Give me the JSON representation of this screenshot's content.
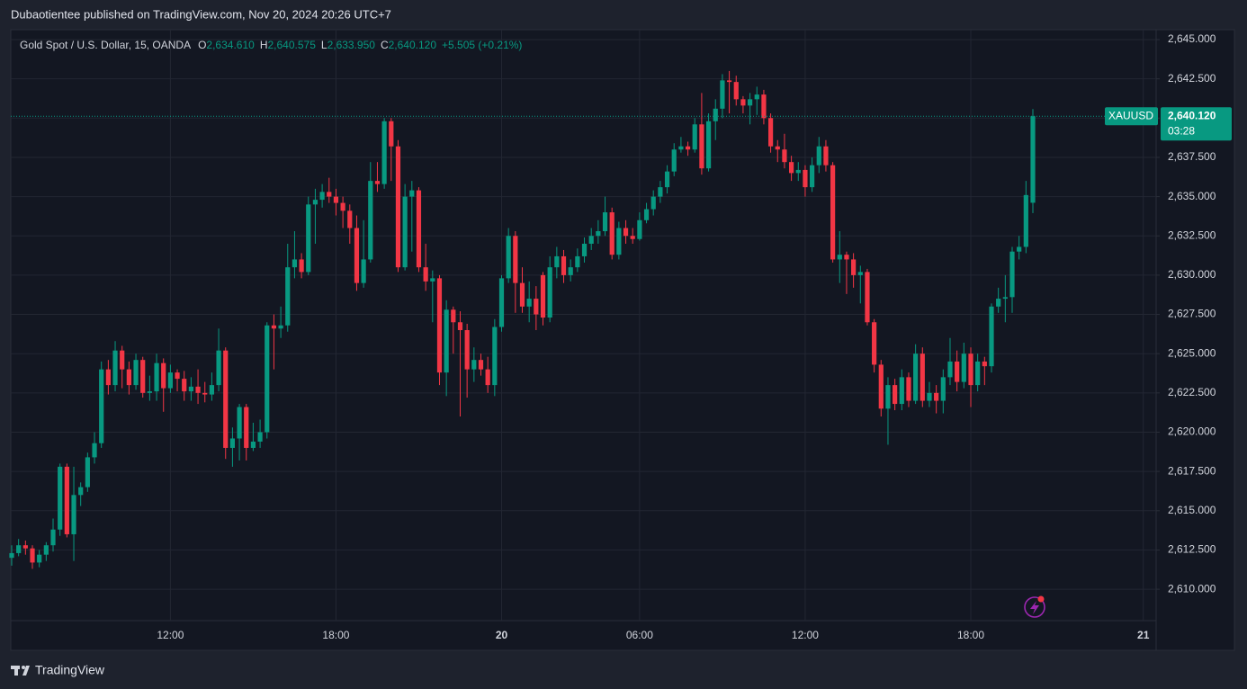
{
  "header": "Dubaotientee published on TradingView.com, Nov 20, 2024 20:26 UTC+7",
  "footer": "TradingView",
  "chart_data": {
    "type": "candlestick",
    "title": "Gold Spot / U.S. Dollar, 15, OANDA",
    "legend_values": [
      {
        "key": "O",
        "text": "2,634.610"
      },
      {
        "key": "H",
        "text": "2,640.575"
      },
      {
        "key": "L",
        "text": "2,633.950"
      },
      {
        "key": "C",
        "text": "2,640.120"
      }
    ],
    "change": "+5.505 (+0.21%)",
    "symbol": "XAUUSD",
    "last_price": {
      "value": 2640.12,
      "label": "2,640.120"
    },
    "countdown": "03:28",
    "up_color": "#089981",
    "down_color": "#f23645",
    "grid": true,
    "ylim": [
      2608,
      2645.63
    ],
    "yticks": [
      {
        "value": 2645,
        "label": "2,645.000"
      },
      {
        "value": 2642.5,
        "label": "2,642.500"
      },
      {
        "value": 2640,
        "label": "2,640.000"
      },
      {
        "value": 2637.5,
        "label": "2,637.500"
      },
      {
        "value": 2635,
        "label": "2,635.000"
      },
      {
        "value": 2632.5,
        "label": "2,632.500"
      },
      {
        "value": 2630,
        "label": "2,630.000"
      },
      {
        "value": 2627.5,
        "label": "2,627.500"
      },
      {
        "value": 2625,
        "label": "2,625.000"
      },
      {
        "value": 2622.5,
        "label": "2,622.500"
      },
      {
        "value": 2620,
        "label": "2,620.000"
      },
      {
        "value": 2617.5,
        "label": "2,617.500"
      },
      {
        "value": 2615,
        "label": "2,615.000"
      },
      {
        "value": 2612.5,
        "label": "2,612.500"
      },
      {
        "value": 2610,
        "label": "2,610.000"
      }
    ],
    "next_label": "21",
    "categories": [
      null,
      null,
      null,
      null,
      null,
      null,
      null,
      null,
      null,
      null,
      null,
      null,
      null,
      null,
      null,
      null,
      null,
      null,
      null,
      null,
      null,
      null,
      null,
      "12:00",
      null,
      null,
      null,
      null,
      null,
      null,
      null,
      null,
      null,
      null,
      null,
      null,
      null,
      null,
      null,
      null,
      null,
      null,
      null,
      null,
      null,
      null,
      null,
      "18:00",
      null,
      null,
      null,
      null,
      null,
      null,
      null,
      null,
      null,
      null,
      null,
      null,
      null,
      null,
      null,
      null,
      null,
      null,
      null,
      null,
      null,
      null,
      null,
      "20",
      null,
      null,
      null,
      null,
      null,
      null,
      null,
      null,
      null,
      null,
      null,
      null,
      null,
      null,
      null,
      null,
      null,
      null,
      null,
      "06:00",
      null,
      null,
      null,
      null,
      null,
      null,
      null,
      null,
      null,
      null,
      null,
      null,
      null,
      null,
      null,
      null,
      null,
      null,
      null,
      null,
      null,
      null,
      null,
      "12:00",
      null,
      null,
      null,
      null,
      null,
      null,
      null,
      null,
      null,
      null,
      null,
      null,
      null,
      null,
      null,
      null,
      null,
      null,
      null,
      null,
      null,
      null,
      null,
      "18:00",
      null,
      null,
      null,
      null,
      null,
      null,
      null,
      null,
      null
    ],
    "ohlc": [
      [
        2612.0,
        2612.8,
        2611.5,
        2612.3
      ],
      [
        2612.3,
        2613.2,
        2612.1,
        2612.8
      ],
      [
        2612.8,
        2613.1,
        2612.2,
        2612.6
      ],
      [
        2612.6,
        2612.8,
        2611.3,
        2611.7
      ],
      [
        2611.7,
        2612.5,
        2611.4,
        2612.2
      ],
      [
        2612.2,
        2613.0,
        2611.8,
        2612.8
      ],
      [
        2612.8,
        2614.5,
        2612.4,
        2613.8
      ],
      [
        2613.8,
        2618.0,
        2613.4,
        2617.8
      ],
      [
        2617.8,
        2618.0,
        2613.3,
        2613.5
      ],
      [
        2613.5,
        2617.8,
        2611.8,
        2616.0
      ],
      [
        2616.0,
        2616.8,
        2615.3,
        2616.5
      ],
      [
        2616.5,
        2618.7,
        2616.2,
        2618.4
      ],
      [
        2618.4,
        2620.0,
        2618.0,
        2619.3
      ],
      [
        2619.3,
        2624.5,
        2619.0,
        2624.0
      ],
      [
        2624.0,
        2624.6,
        2622.4,
        2623.0
      ],
      [
        2623.0,
        2625.8,
        2622.6,
        2625.2
      ],
      [
        2625.2,
        2625.5,
        2622.8,
        2624.0
      ],
      [
        2624.0,
        2624.5,
        2622.4,
        2623.0
      ],
      [
        2623.0,
        2625.0,
        2622.7,
        2624.6
      ],
      [
        2624.6,
        2624.8,
        2622.2,
        2622.5
      ],
      [
        2622.5,
        2623.6,
        2622.0,
        2622.6
      ],
      [
        2622.6,
        2625.0,
        2622.0,
        2624.4
      ],
      [
        2624.4,
        2624.7,
        2621.3,
        2622.8
      ],
      [
        2622.8,
        2624.3,
        2622.5,
        2623.8
      ],
      [
        2623.8,
        2624.0,
        2622.6,
        2623.4
      ],
      [
        2623.4,
        2623.9,
        2622.0,
        2622.6
      ],
      [
        2622.6,
        2623.5,
        2622.0,
        2622.9
      ],
      [
        2622.9,
        2624.0,
        2621.8,
        2622.5
      ],
      [
        2622.5,
        2623.2,
        2621.9,
        2622.4
      ],
      [
        2622.4,
        2623.8,
        2622.0,
        2623.0
      ],
      [
        2623.0,
        2626.6,
        2622.6,
        2625.2
      ],
      [
        2625.2,
        2625.4,
        2618.3,
        2619.0
      ],
      [
        2619.0,
        2620.3,
        2617.8,
        2619.6
      ],
      [
        2619.6,
        2621.8,
        2618.2,
        2621.6
      ],
      [
        2621.6,
        2621.8,
        2618.2,
        2619.0
      ],
      [
        2619.0,
        2620.6,
        2618.8,
        2619.4
      ],
      [
        2619.4,
        2620.8,
        2619.0,
        2620.0
      ],
      [
        2620.0,
        2627.0,
        2619.6,
        2626.8
      ],
      [
        2626.8,
        2627.5,
        2624.0,
        2626.6
      ],
      [
        2626.6,
        2628.0,
        2626.0,
        2626.8
      ],
      [
        2626.8,
        2632.0,
        2626.4,
        2630.5
      ],
      [
        2630.5,
        2632.8,
        2629.8,
        2631.0
      ],
      [
        2631.0,
        2631.4,
        2629.8,
        2630.2
      ],
      [
        2630.2,
        2635.0,
        2630.0,
        2634.5
      ],
      [
        2634.5,
        2635.5,
        2632.0,
        2634.8
      ],
      [
        2634.8,
        2635.8,
        2634.3,
        2635.3
      ],
      [
        2635.3,
        2636.2,
        2634.6,
        2635.0
      ],
      [
        2635.0,
        2635.5,
        2633.8,
        2634.6
      ],
      [
        2634.6,
        2635.0,
        2633.0,
        2634.1
      ],
      [
        2634.1,
        2634.5,
        2632.0,
        2633.0
      ],
      [
        2633.0,
        2633.8,
        2629.0,
        2629.5
      ],
      [
        2629.5,
        2633.5,
        2629.2,
        2631.0
      ],
      [
        2631.0,
        2637.2,
        2630.8,
        2636.0
      ],
      [
        2636.0,
        2637.2,
        2635.3,
        2635.8
      ],
      [
        2635.8,
        2640.0,
        2635.5,
        2639.8
      ],
      [
        2639.8,
        2640.0,
        2636.0,
        2638.2
      ],
      [
        2638.2,
        2638.6,
        2630.2,
        2630.5
      ],
      [
        2630.5,
        2635.8,
        2630.3,
        2635.0
      ],
      [
        2635.0,
        2636.0,
        2631.5,
        2635.4
      ],
      [
        2635.4,
        2635.6,
        2630.2,
        2630.5
      ],
      [
        2630.5,
        2632.0,
        2629.0,
        2629.6
      ],
      [
        2629.6,
        2630.3,
        2627.0,
        2629.8
      ],
      [
        2629.8,
        2630.0,
        2623.0,
        2623.8
      ],
      [
        2623.8,
        2628.4,
        2622.3,
        2627.8
      ],
      [
        2627.8,
        2628.0,
        2625.0,
        2627.0
      ],
      [
        2627.0,
        2627.7,
        2621.0,
        2626.5
      ],
      [
        2626.5,
        2626.9,
        2622.2,
        2624.0
      ],
      [
        2624.0,
        2625.4,
        2623.2,
        2624.6
      ],
      [
        2624.6,
        2625.0,
        2623.6,
        2624.0
      ],
      [
        2624.0,
        2624.8,
        2622.5,
        2623.0
      ],
      [
        2623.0,
        2627.2,
        2622.3,
        2626.7
      ],
      [
        2626.7,
        2630.0,
        2626.4,
        2629.8
      ],
      [
        2629.8,
        2633.0,
        2629.5,
        2632.5
      ],
      [
        2632.5,
        2632.8,
        2627.6,
        2629.5
      ],
      [
        2629.5,
        2630.5,
        2627.6,
        2628.0
      ],
      [
        2628.0,
        2629.6,
        2627.0,
        2628.5
      ],
      [
        2628.5,
        2629.3,
        2626.5,
        2627.5
      ],
      [
        2630.0,
        2630.2,
        2626.8,
        2627.3
      ],
      [
        2627.3,
        2631.2,
        2627.0,
        2630.5
      ],
      [
        2630.5,
        2631.8,
        2629.8,
        2631.2
      ],
      [
        2631.2,
        2631.6,
        2629.5,
        2630.0
      ],
      [
        2630.0,
        2631.0,
        2629.6,
        2630.5
      ],
      [
        2630.5,
        2631.7,
        2630.2,
        2631.2
      ],
      [
        2631.2,
        2632.4,
        2630.8,
        2632.0
      ],
      [
        2632.0,
        2633.0,
        2631.6,
        2632.5
      ],
      [
        2632.5,
        2633.5,
        2632.0,
        2632.8
      ],
      [
        2632.8,
        2635.0,
        2632.5,
        2634.0
      ],
      [
        2634.0,
        2634.3,
        2631.0,
        2631.3
      ],
      [
        2631.3,
        2633.4,
        2631.0,
        2633.0
      ],
      [
        2633.0,
        2633.5,
        2632.0,
        2632.5
      ],
      [
        2632.5,
        2633.0,
        2632.0,
        2632.3
      ],
      [
        2632.3,
        2634.0,
        2632.2,
        2633.5
      ],
      [
        2633.5,
        2634.6,
        2633.3,
        2634.2
      ],
      [
        2634.2,
        2635.4,
        2633.8,
        2635.0
      ],
      [
        2635.0,
        2636.0,
        2634.6,
        2635.6
      ],
      [
        2635.6,
        2637.0,
        2635.2,
        2636.6
      ],
      [
        2636.6,
        2638.4,
        2636.3,
        2638.0
      ],
      [
        2638.0,
        2638.8,
        2637.8,
        2638.2
      ],
      [
        2638.2,
        2638.5,
        2637.6,
        2638.0
      ],
      [
        2638.0,
        2640.0,
        2637.8,
        2639.6
      ],
      [
        2639.6,
        2641.6,
        2636.4,
        2636.8
      ],
      [
        2636.8,
        2640.3,
        2636.6,
        2639.8
      ],
      [
        2639.8,
        2641.2,
        2638.6,
        2640.6
      ],
      [
        2640.6,
        2642.8,
        2640.0,
        2642.4
      ],
      [
        2642.4,
        2643.0,
        2640.3,
        2642.3
      ],
      [
        2642.3,
        2642.7,
        2640.8,
        2641.2
      ],
      [
        2641.2,
        2641.4,
        2640.3,
        2640.8
      ],
      [
        2640.8,
        2641.6,
        2639.6,
        2641.2
      ],
      [
        2641.2,
        2642.0,
        2640.2,
        2641.5
      ],
      [
        2641.5,
        2641.8,
        2639.6,
        2640.0
      ],
      [
        2640.0,
        2640.3,
        2637.8,
        2638.2
      ],
      [
        2638.2,
        2638.6,
        2637.2,
        2638.0
      ],
      [
        2638.0,
        2639.0,
        2636.8,
        2637.2
      ],
      [
        2637.2,
        2637.6,
        2636.0,
        2636.5
      ],
      [
        2636.5,
        2637.2,
        2636.0,
        2636.7
      ],
      [
        2636.7,
        2637.0,
        2635.0,
        2635.6
      ],
      [
        2635.6,
        2637.5,
        2635.3,
        2637.0
      ],
      [
        2637.0,
        2638.8,
        2636.5,
        2638.2
      ],
      [
        2638.2,
        2638.6,
        2636.6,
        2637.0
      ],
      [
        2637.0,
        2637.2,
        2630.8,
        2631.0
      ],
      [
        2631.0,
        2632.8,
        2629.5,
        2631.3
      ],
      [
        2631.3,
        2631.5,
        2628.8,
        2631.0
      ],
      [
        2631.0,
        2631.4,
        2629.2,
        2630.0
      ],
      [
        2630.0,
        2630.6,
        2628.2,
        2630.2
      ],
      [
        2630.2,
        2630.4,
        2626.8,
        2627.0
      ],
      [
        2627.0,
        2627.2,
        2623.8,
        2624.3
      ],
      [
        2624.3,
        2624.6,
        2621.0,
        2621.5
      ],
      [
        2621.5,
        2623.5,
        2619.2,
        2623.0
      ],
      [
        2623.0,
        2623.4,
        2621.4,
        2621.8
      ],
      [
        2621.8,
        2624.0,
        2621.4,
        2623.5
      ],
      [
        2623.5,
        2623.8,
        2621.6,
        2622.0
      ],
      [
        2622.0,
        2625.6,
        2621.8,
        2625.0
      ],
      [
        2625.0,
        2625.4,
        2621.6,
        2622.0
      ],
      [
        2622.0,
        2623.2,
        2621.6,
        2622.5
      ],
      [
        2622.5,
        2623.0,
        2621.2,
        2622.0
      ],
      [
        2622.0,
        2624.0,
        2621.2,
        2623.5
      ],
      [
        2623.5,
        2626.0,
        2623.0,
        2624.5
      ],
      [
        2624.5,
        2625.2,
        2622.6,
        2623.2
      ],
      [
        2623.2,
        2625.7,
        2622.8,
        2625.0
      ],
      [
        2625.0,
        2625.4,
        2621.6,
        2623.0
      ],
      [
        2623.0,
        2625.0,
        2622.6,
        2624.5
      ],
      [
        2624.5,
        2624.8,
        2623.0,
        2624.2
      ],
      [
        2624.2,
        2628.2,
        2623.8,
        2628.0
      ],
      [
        2628.0,
        2629.2,
        2627.6,
        2628.5
      ],
      [
        2628.5,
        2630.0,
        2627.0,
        2628.6
      ],
      [
        2628.6,
        2631.8,
        2627.6,
        2631.5
      ],
      [
        2631.5,
        2632.5,
        2631.0,
        2631.8
      ],
      [
        2631.8,
        2636.0,
        2631.4,
        2635.1
      ],
      [
        2634.61,
        2640.575,
        2633.95,
        2640.12
      ]
    ]
  }
}
